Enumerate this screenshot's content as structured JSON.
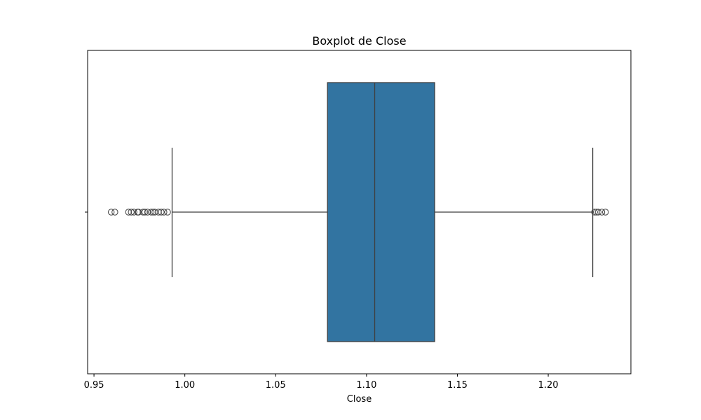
{
  "chart_data": {
    "type": "boxplot",
    "orientation": "horizontal",
    "title": "Boxplot de Close",
    "xlabel": "Close",
    "ylabel": "",
    "xlim": [
      0.9465,
      1.2455
    ],
    "xticks": [
      0.95,
      1.0,
      1.05,
      1.1,
      1.15,
      1.2
    ],
    "xtick_labels": [
      "0.95",
      "1.00",
      "1.05",
      "1.10",
      "1.15",
      "1.20"
    ],
    "grid": false,
    "box": {
      "whisker_low": 0.993,
      "q1": 1.0785,
      "median": 1.1045,
      "q3": 1.1375,
      "whisker_high": 1.2245,
      "color": "#3274a1",
      "line_color": "#3f3f3f"
    },
    "outliers": [
      0.9595,
      0.9615,
      0.969,
      0.9705,
      0.972,
      0.974,
      0.9745,
      0.977,
      0.978,
      0.9795,
      0.9815,
      0.9825,
      0.9835,
      0.9855,
      0.987,
      0.9885,
      0.9905,
      1.2255,
      1.2265,
      1.2275,
      1.2295,
      1.2315
    ]
  }
}
